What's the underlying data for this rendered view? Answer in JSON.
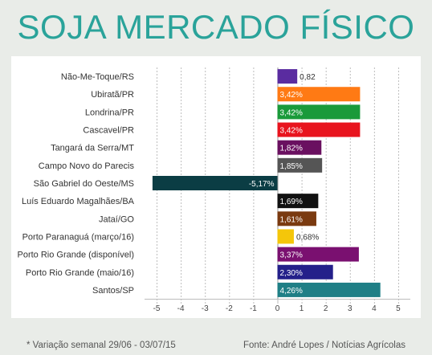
{
  "title": "SOJA MERCADO FÍSICO",
  "footer": {
    "note": "* Variação semanal 29/06 - 03/07/15",
    "source": "Fonte: André Lopes / Notícias Agrícolas"
  },
  "chart_data": {
    "type": "bar",
    "orientation": "horizontal",
    "categories": [
      "Não-Me-Toque/RS",
      "Ubiratã/PR",
      "Londrina/PR",
      "Cascavel/PR",
      "Tangará da Serra/MT",
      "Campo Novo do Parecis",
      "São Gabriel do Oeste/MS",
      "Luís Eduardo Magalhães/BA",
      "Jataí/GO",
      "Porto Paranaguá (março/16)",
      "Porto Rio Grande (disponível)",
      "Porto Rio Grande (maio/16)",
      "Santos/SP"
    ],
    "values": [
      0.82,
      3.42,
      3.42,
      3.42,
      1.82,
      1.85,
      -5.17,
      1.69,
      1.61,
      0.68,
      3.37,
      2.3,
      4.26
    ],
    "labels": [
      "0,82",
      "3,42%",
      "3,42%",
      "3,42%",
      "1,82%",
      "1,85%",
      "-5,17%",
      "1,69%",
      "1,61%",
      "0,68%",
      "3,37%",
      "2,30%",
      "4,26%"
    ],
    "colors": [
      "#5a2ca0",
      "#ff7a14",
      "#1a9a3a",
      "#e8141e",
      "#6a1060",
      "#555555",
      "#0b3d44",
      "#111111",
      "#7a3a10",
      "#f4c60a",
      "#7a1070",
      "#24208a",
      "#1f7f86"
    ],
    "xlim": [
      -5.5,
      5.5
    ],
    "xticks": [
      -5,
      -4,
      -3,
      -2,
      -1,
      0,
      1,
      2,
      3,
      4,
      5
    ],
    "grid": true
  }
}
